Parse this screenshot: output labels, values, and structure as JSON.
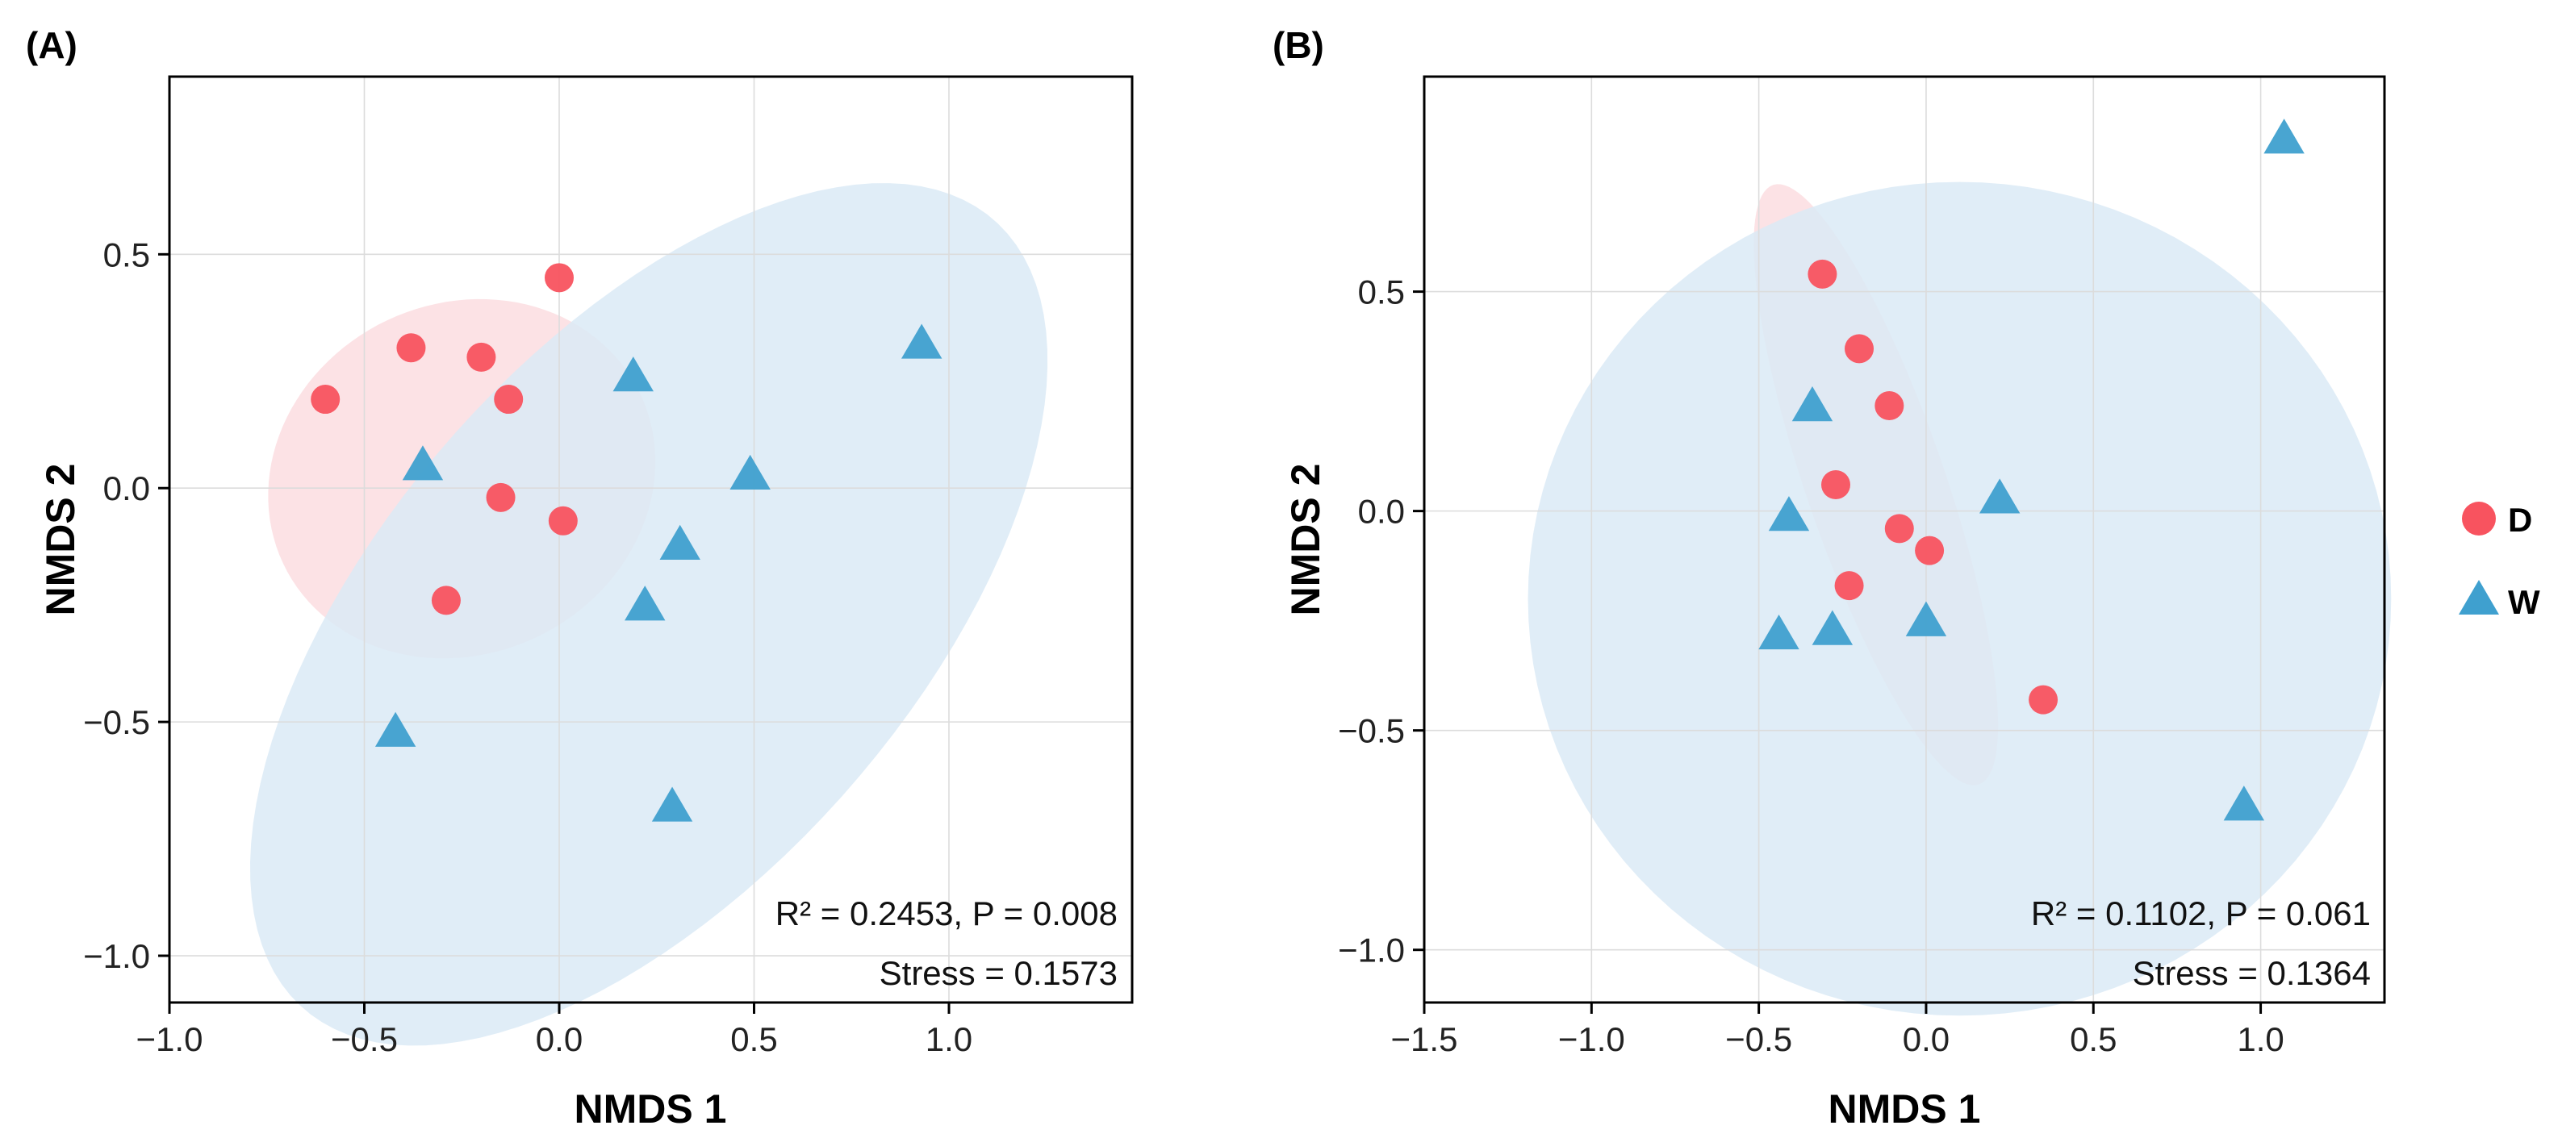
{
  "colors": {
    "D": "#f8535f",
    "W": "#3fa0cf",
    "ellipse_D": "#fbdde0",
    "ellipse_W": "#dbeaf6"
  },
  "legend": [
    {
      "group": "D",
      "shape": "circle",
      "label": "D"
    },
    {
      "group": "W",
      "shape": "triangle",
      "label": "W"
    }
  ],
  "chart_data": [
    {
      "type": "scatter",
      "panel_label": "(A)",
      "xlabel": "NMDS 1",
      "ylabel": "NMDS 2",
      "xlim": [
        -1.0,
        1.47
      ],
      "ylim": [
        -1.1,
        0.88
      ],
      "xticks": [
        -1.0,
        -0.5,
        0.0,
        0.5,
        1.0
      ],
      "xtick_labels": [
        "−1.0",
        "−0.5",
        "0.0",
        "0.5",
        "1.0"
      ],
      "yticks": [
        -1.0,
        -0.5,
        0.0,
        0.5
      ],
      "ytick_labels": [
        "−1.0",
        "−0.5",
        "0.0",
        "0.5"
      ],
      "annotation": [
        "R² = 0.2453, P = 0.008",
        "Stress = 0.1573"
      ],
      "series": [
        {
          "name": "D",
          "shape": "circle",
          "x": [
            0.0,
            -0.38,
            -0.2,
            -0.6,
            -0.13,
            -0.15,
            0.01,
            -0.29
          ],
          "y": [
            0.45,
            0.3,
            0.28,
            0.19,
            0.19,
            -0.02,
            -0.07,
            -0.24
          ]
        },
        {
          "name": "W",
          "shape": "triangle",
          "x": [
            0.93,
            0.19,
            -0.35,
            0.49,
            0.31,
            0.22,
            -0.42,
            0.29
          ],
          "y": [
            0.31,
            0.24,
            0.05,
            0.03,
            -0.12,
            -0.25,
            -0.52,
            -0.68
          ]
        }
      ],
      "ellipses": [
        {
          "group": "D",
          "cx": -0.25,
          "cy": 0.02,
          "rx": 0.5,
          "ry": 0.38,
          "angle": 10
        },
        {
          "group": "W",
          "cx": 0.23,
          "cy": -0.27,
          "rx": 1.23,
          "ry": 0.62,
          "angle": 40
        }
      ]
    },
    {
      "type": "scatter",
      "panel_label": "(B)",
      "xlabel": "NMDS 1",
      "ylabel": "NMDS 2",
      "xlim": [
        -1.5,
        1.37
      ],
      "ylim": [
        -1.12,
        0.99
      ],
      "xticks": [
        -1.5,
        -1.0,
        -0.5,
        0.0,
        0.5,
        1.0
      ],
      "xtick_labels": [
        "−1.5",
        "−1.0",
        "−0.5",
        "0.0",
        "0.5",
        "1.0"
      ],
      "yticks": [
        -1.0,
        -0.5,
        0.0,
        0.5
      ],
      "ytick_labels": [
        "−1.0",
        "−0.5",
        "0.0",
        "0.5"
      ],
      "annotation": [
        "R² = 0.1102, P = 0.061",
        "Stress = 0.1364"
      ],
      "series": [
        {
          "name": "D",
          "shape": "circle",
          "x": [
            -0.31,
            -0.2,
            -0.11,
            -0.27,
            -0.08,
            0.01,
            -0.23,
            0.35
          ],
          "y": [
            0.54,
            0.37,
            0.24,
            0.06,
            -0.04,
            -0.09,
            -0.17,
            -0.43
          ]
        },
        {
          "name": "W",
          "shape": "triangle",
          "x": [
            1.07,
            -0.34,
            0.22,
            -0.41,
            0.0,
            -0.28,
            -0.44,
            0.95
          ],
          "y": [
            0.85,
            0.24,
            0.03,
            -0.01,
            -0.25,
            -0.27,
            -0.28,
            -0.67
          ]
        }
      ],
      "ellipses": [
        {
          "group": "D",
          "cx": -0.15,
          "cy": 0.06,
          "rx": 0.75,
          "ry": 0.2,
          "angle": -65
        },
        {
          "group": "W",
          "cx": 0.1,
          "cy": -0.2,
          "rx": 1.29,
          "ry": 0.95,
          "angle": 0
        }
      ]
    }
  ]
}
